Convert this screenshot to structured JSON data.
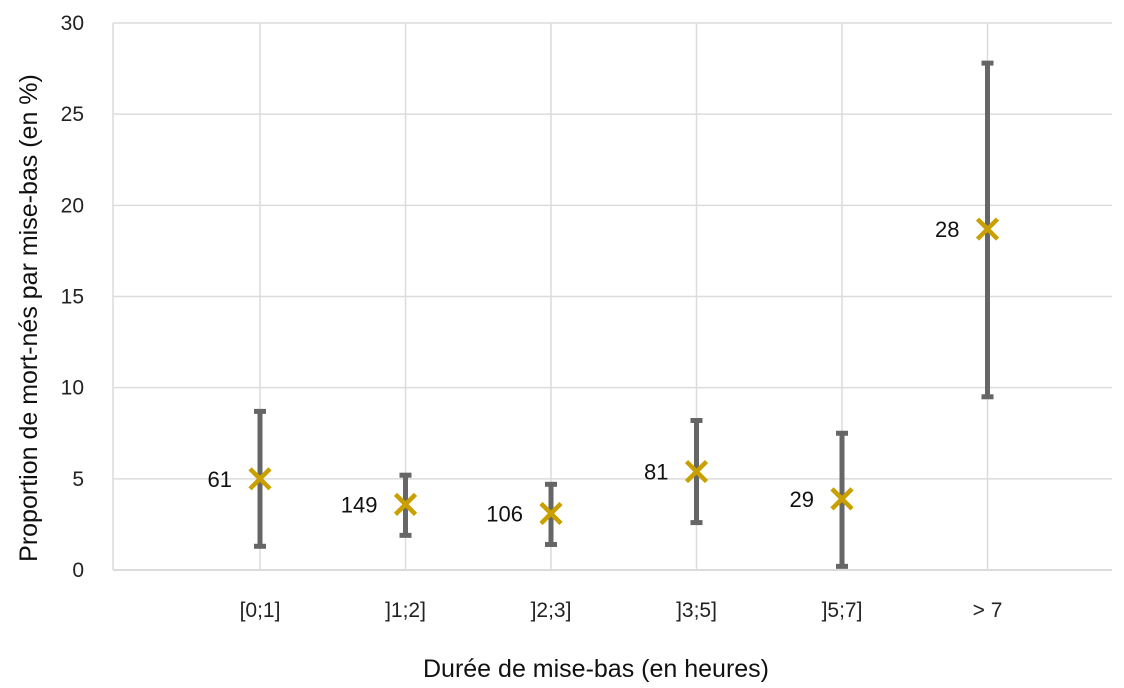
{
  "chart_data": {
    "type": "scatter",
    "xlabel": "Durée de mise-bas (en heures)",
    "ylabel": "Proportion de mort-nés par mise-bas (en %)",
    "ylim": [
      0,
      30
    ],
    "yticks": [
      "0",
      "5",
      "10",
      "15",
      "20",
      "25",
      "30"
    ],
    "categories": [
      "[0;1]",
      "]1;2]",
      "]2;3]",
      "]3;5]",
      "]5;7]",
      "> 7"
    ],
    "values": [
      5.0,
      3.6,
      3.1,
      5.4,
      3.9,
      18.7
    ],
    "error_low": [
      1.3,
      1.9,
      1.4,
      2.6,
      0.2,
      9.5
    ],
    "error_high": [
      8.7,
      5.2,
      4.7,
      8.2,
      7.5,
      27.8
    ],
    "data_labels": [
      "61",
      "149",
      "106",
      "81",
      "29",
      "28"
    ],
    "grid": true,
    "colors": {
      "marker": "#c9a000",
      "error_bar": "#666666",
      "grid": "#dcdcdc"
    }
  }
}
